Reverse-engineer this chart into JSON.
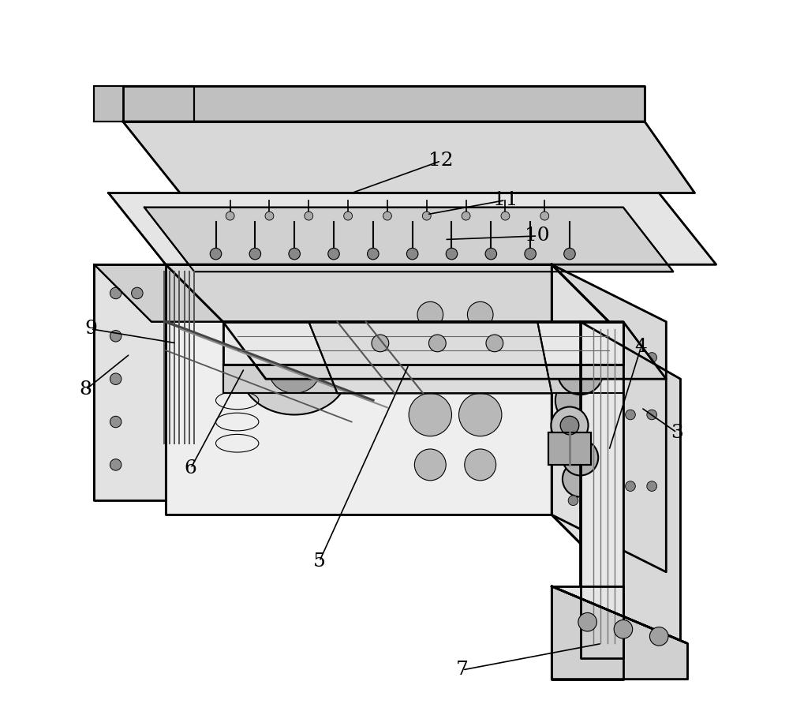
{
  "background_color": "#ffffff",
  "line_color": "#000000",
  "label_color": "#000000",
  "fig_width": 10.0,
  "fig_height": 9.06,
  "dpi": 100,
  "label_fontsize": 18
}
